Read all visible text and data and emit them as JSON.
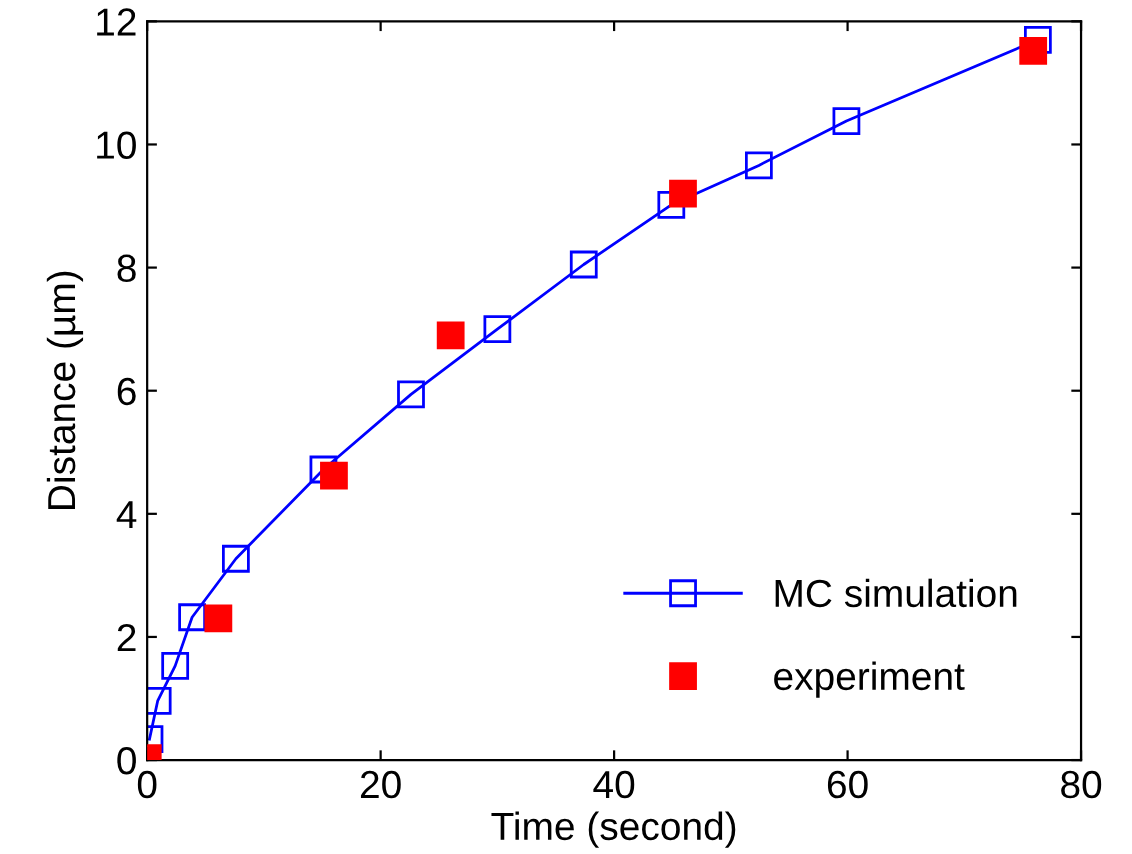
{
  "chart_data": {
    "type": "line",
    "xlabel": "Time (second)",
    "ylabel": "Distance (µm)",
    "xlim": [
      0,
      80
    ],
    "xticks": [
      0,
      20,
      40,
      60,
      80
    ],
    "ylim": [
      0,
      12
    ],
    "yticks": [
      0,
      2,
      4,
      6,
      8,
      10,
      12
    ],
    "grid": false,
    "legend": "bottom right",
    "series": [
      {
        "name": "MC simulation",
        "color": "#0000ff",
        "marker": "square",
        "x": [
          0.2,
          0.9,
          2.4,
          3.85,
          7.6,
          15.1,
          22.6,
          30.0,
          37.4,
          44.9,
          52.4,
          59.9,
          76.3
        ],
        "values": [
          0.34,
          0.96,
          1.53,
          2.32,
          3.27,
          4.72,
          5.94,
          7.0,
          8.05,
          9.02,
          9.66,
          10.38,
          11.7
        ]
      },
      {
        "name": "experiment",
        "type": "scatter",
        "color": "#ff0000",
        "marker": "square",
        "x": [
          0.05,
          6.1,
          16.0,
          26.0,
          45.9,
          75.9
        ],
        "values": [
          0.03,
          2.3,
          4.62,
          6.9,
          9.2,
          11.52
        ]
      }
    ]
  }
}
